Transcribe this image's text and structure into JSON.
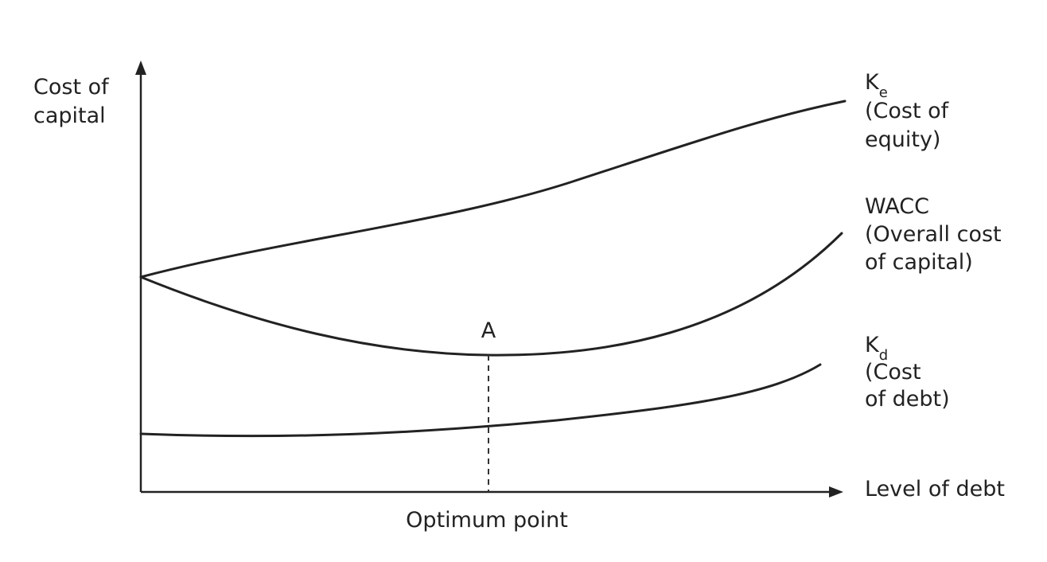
{
  "y_axis_label": {
    "line1": "Cost of",
    "line2": "capital"
  },
  "x_axis_label": "Level of debt",
  "optimum_label": "Optimum point",
  "point_label": "A",
  "curves": {
    "ke": {
      "symbol": "K",
      "subscript": "e",
      "line1": "(Cost of",
      "line2": "equity)"
    },
    "wacc": {
      "title": "WACC",
      "line1": "(Overall cost",
      "line2": "of capital)"
    },
    "kd": {
      "symbol": "K",
      "subscript": "d",
      "line1": "(Cost",
      "line2": "of debt)"
    }
  }
}
